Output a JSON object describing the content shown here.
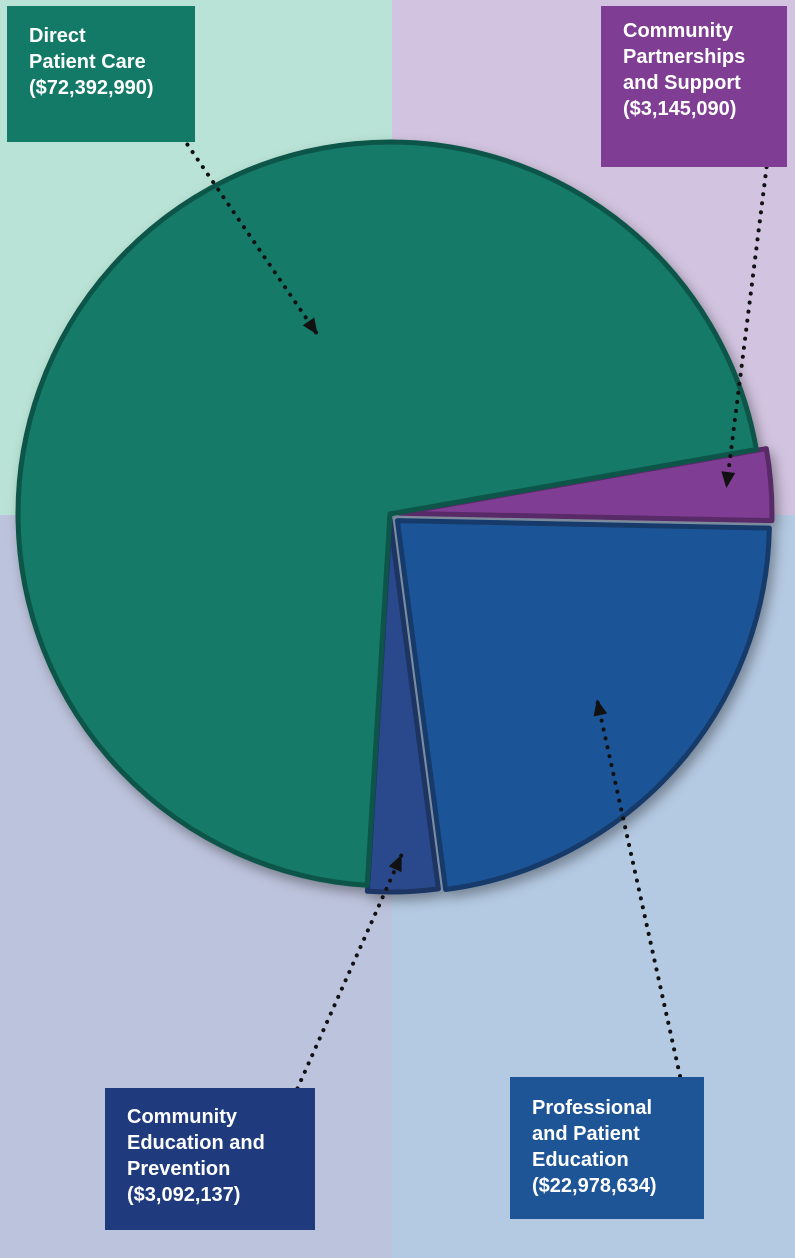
{
  "chart_data": {
    "type": "pie",
    "title": "",
    "slices": [
      {
        "label_lines": [
          "Direct",
          "Patient Care",
          "($72,392,990)"
        ],
        "value": 72392990,
        "color": "#127a67"
      },
      {
        "label_lines": [
          "Community",
          "Partnerships",
          "and Support",
          "($3,145,090)"
        ],
        "value": 3145090,
        "color": "#7f3e93"
      },
      {
        "label_lines": [
          "Professional",
          "and Patient",
          "Education",
          "($22,978,634)"
        ],
        "value": 22978634,
        "color": "#1e5597"
      },
      {
        "label_lines": [
          "Community",
          "Education and",
          "Prevention",
          "($3,092,137)"
        ],
        "value": 3092137,
        "color": "#2a4a8c"
      }
    ]
  },
  "colors": {
    "background_quadrants": [
      "#b9e3d6",
      "#d2c4e0",
      "#bcc3dc",
      "#b4c9e2"
    ],
    "leader_line": "#111111"
  }
}
